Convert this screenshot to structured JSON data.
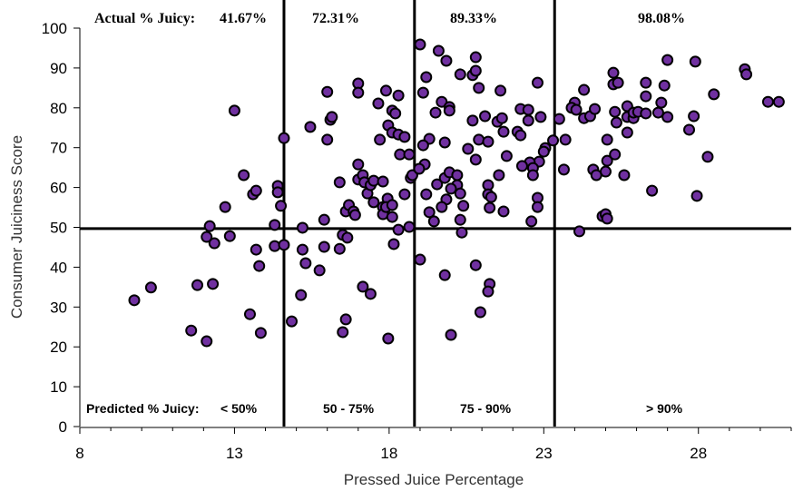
{
  "chart_data": {
    "type": "scatter",
    "title": "",
    "xlabel": "Pressed Juice Percentage",
    "ylabel": "Consumer Juiciness Score",
    "xlim": [
      8,
      31
    ],
    "ylim": [
      0,
      100
    ],
    "x_major_ticks": [
      8,
      13,
      18,
      23,
      28
    ],
    "x_minor_step": 1,
    "y_ticks": [
      0,
      10,
      20,
      30,
      40,
      50,
      60,
      70,
      80,
      90,
      100
    ],
    "grid": false,
    "marker_color": "#7030A0",
    "marker_edge": "#000000",
    "reference_lines": {
      "vertical_x": [
        14.6,
        18.82,
        23.35
      ],
      "horizontal_y": 49.7
    },
    "actual_label": "Actual % Juicy:",
    "actual_values": [
      "41.67%",
      "72.31%",
      "89.33%",
      "98.08%"
    ],
    "predicted_label": "Predicted % Juicy:",
    "predicted_values": [
      "< 50%",
      "50 - 75%",
      "75 - 90%",
      "> 90%"
    ],
    "points": [
      [
        9.76,
        31.7
      ],
      [
        10.3,
        34.9
      ],
      [
        11.6,
        24.1
      ],
      [
        12.1,
        21.4
      ],
      [
        11.8,
        35.5
      ],
      [
        12.3,
        35.8
      ],
      [
        12.1,
        47.6
      ],
      [
        12.2,
        50.3
      ],
      [
        12.35,
        46.0
      ],
      [
        12.7,
        55.1
      ],
      [
        12.85,
        47.8
      ],
      [
        13.0,
        79.3
      ],
      [
        13.3,
        63.1
      ],
      [
        13.5,
        28.2
      ],
      [
        13.6,
        58.3
      ],
      [
        13.7,
        59.2
      ],
      [
        13.7,
        44.4
      ],
      [
        13.8,
        40.3
      ],
      [
        13.85,
        23.5
      ],
      [
        14.3,
        50.6
      ],
      [
        14.3,
        45.3
      ],
      [
        14.4,
        60.4
      ],
      [
        14.4,
        58.8
      ],
      [
        14.5,
        55.4
      ],
      [
        14.6,
        72.4
      ],
      [
        14.6,
        45.6
      ],
      [
        15.15,
        33.0
      ],
      [
        14.85,
        26.4
      ],
      [
        15.2,
        49.9
      ],
      [
        15.2,
        44.4
      ],
      [
        15.3,
        41.0
      ],
      [
        15.45,
        75.2
      ],
      [
        15.75,
        39.2
      ],
      [
        15.9,
        45.1
      ],
      [
        15.9,
        51.9
      ],
      [
        16.0,
        84.0
      ],
      [
        16.0,
        72.0
      ],
      [
        16.1,
        77.0
      ],
      [
        16.15,
        77.7
      ],
      [
        16.4,
        61.3
      ],
      [
        16.4,
        44.6
      ],
      [
        16.5,
        48.1
      ],
      [
        16.65,
        47.4
      ],
      [
        16.5,
        23.7
      ],
      [
        16.6,
        26.9
      ],
      [
        16.6,
        54.0
      ],
      [
        16.7,
        55.6
      ],
      [
        16.85,
        54.0
      ],
      [
        16.9,
        53.1
      ],
      [
        17.0,
        86.1
      ],
      [
        17.0,
        83.8
      ],
      [
        17.0,
        65.8
      ],
      [
        17.0,
        62.0
      ],
      [
        17.15,
        63.1
      ],
      [
        17.2,
        61.3
      ],
      [
        17.3,
        58.5
      ],
      [
        17.4,
        60.6
      ],
      [
        17.5,
        61.7
      ],
      [
        17.5,
        56.3
      ],
      [
        17.15,
        35.1
      ],
      [
        17.4,
        33.3
      ],
      [
        17.65,
        81.1
      ],
      [
        17.7,
        72.0
      ],
      [
        17.8,
        61.5
      ],
      [
        17.8,
        55.1
      ],
      [
        17.8,
        53.3
      ],
      [
        17.9,
        84.3
      ],
      [
        17.95,
        57.2
      ],
      [
        17.9,
        55.1
      ],
      [
        18.1,
        55.6
      ],
      [
        18.1,
        52.6
      ],
      [
        17.97,
        22.1
      ],
      [
        18.15,
        45.8
      ],
      [
        17.97,
        75.6
      ],
      [
        18.1,
        79.3
      ],
      [
        18.2,
        78.6
      ],
      [
        18.1,
        73.8
      ],
      [
        18.3,
        83.1
      ],
      [
        18.3,
        73.3
      ],
      [
        18.5,
        72.7
      ],
      [
        18.35,
        68.3
      ],
      [
        18.65,
        68.3
      ],
      [
        18.5,
        58.3
      ],
      [
        18.3,
        49.4
      ],
      [
        18.65,
        50.1
      ],
      [
        18.7,
        62.4
      ],
      [
        18.75,
        63.1
      ],
      [
        19.0,
        95.9
      ],
      [
        19.2,
        87.7
      ],
      [
        19.1,
        83.8
      ],
      [
        19.3,
        72.2
      ],
      [
        19.1,
        70.6
      ],
      [
        19.15,
        65.8
      ],
      [
        18.97,
        64.7
      ],
      [
        19.2,
        58.3
      ],
      [
        19.3,
        53.8
      ],
      [
        19.45,
        51.5
      ],
      [
        19.0,
        41.9
      ],
      [
        19.6,
        94.3
      ],
      [
        19.85,
        91.8
      ],
      [
        19.5,
        78.8
      ],
      [
        19.7,
        81.5
      ],
      [
        19.95,
        80.2
      ],
      [
        19.95,
        79.3
      ],
      [
        19.8,
        71.3
      ],
      [
        19.55,
        60.8
      ],
      [
        19.8,
        62.4
      ],
      [
        19.95,
        63.8
      ],
      [
        20.2,
        63.1
      ],
      [
        20.2,
        60.6
      ],
      [
        20.0,
        59.7
      ],
      [
        20.3,
        58.5
      ],
      [
        19.85,
        57.0
      ],
      [
        19.7,
        55.1
      ],
      [
        20.4,
        55.4
      ],
      [
        20.3,
        51.9
      ],
      [
        20.35,
        48.7
      ],
      [
        19.8,
        38.0
      ],
      [
        20.0,
        23.0
      ],
      [
        20.3,
        88.4
      ],
      [
        20.7,
        88.2
      ],
      [
        20.8,
        89.3
      ],
      [
        20.8,
        92.7
      ],
      [
        20.9,
        85.0
      ],
      [
        20.7,
        76.8
      ],
      [
        21.1,
        77.9
      ],
      [
        20.9,
        72.0
      ],
      [
        21.2,
        71.5
      ],
      [
        20.55,
        69.7
      ],
      [
        20.8,
        67.0
      ],
      [
        21.2,
        60.6
      ],
      [
        21.2,
        58.3
      ],
      [
        21.3,
        57.6
      ],
      [
        21.25,
        54.9
      ],
      [
        20.8,
        40.5
      ],
      [
        21.25,
        35.8
      ],
      [
        21.2,
        33.9
      ],
      [
        20.95,
        28.7
      ],
      [
        21.6,
        84.3
      ],
      [
        21.5,
        76.5
      ],
      [
        21.65,
        77.4
      ],
      [
        21.7,
        74.0
      ],
      [
        21.8,
        67.9
      ],
      [
        21.55,
        63.1
      ],
      [
        21.7,
        54.0
      ],
      [
        22.25,
        79.7
      ],
      [
        22.5,
        79.5
      ],
      [
        22.5,
        76.8
      ],
      [
        22.9,
        77.7
      ],
      [
        22.8,
        86.3
      ],
      [
        22.15,
        74.0
      ],
      [
        22.25,
        73.1
      ],
      [
        23.3,
        71.8
      ],
      [
        23.05,
        69.9
      ],
      [
        23.0,
        69.0
      ],
      [
        22.85,
        66.5
      ],
      [
        22.55,
        66.3
      ],
      [
        22.3,
        65.4
      ],
      [
        22.65,
        64.9
      ],
      [
        22.65,
        63.1
      ],
      [
        22.8,
        57.4
      ],
      [
        22.8,
        55.1
      ],
      [
        22.6,
        51.5
      ],
      [
        23.5,
        77.2
      ],
      [
        23.7,
        72.0
      ],
      [
        23.65,
        64.5
      ],
      [
        24.3,
        84.5
      ],
      [
        24.0,
        81.3
      ],
      [
        23.9,
        80.0
      ],
      [
        24.05,
        79.5
      ],
      [
        24.3,
        77.4
      ],
      [
        24.5,
        77.9
      ],
      [
        24.65,
        79.7
      ],
      [
        24.15,
        49.0
      ],
      [
        24.6,
        64.5
      ],
      [
        24.7,
        63.1
      ],
      [
        25.0,
        64.0
      ],
      [
        25.05,
        66.7
      ],
      [
        25.3,
        68.3
      ],
      [
        25.05,
        72.0
      ],
      [
        24.9,
        52.8
      ],
      [
        25.0,
        53.3
      ],
      [
        25.05,
        52.2
      ],
      [
        25.25,
        88.8
      ],
      [
        25.25,
        85.9
      ],
      [
        25.4,
        86.3
      ],
      [
        25.3,
        79.0
      ],
      [
        25.35,
        76.3
      ],
      [
        25.7,
        80.4
      ],
      [
        25.7,
        77.7
      ],
      [
        25.9,
        77.4
      ],
      [
        25.9,
        78.8
      ],
      [
        26.05,
        79.0
      ],
      [
        25.7,
        73.8
      ],
      [
        25.6,
        63.1
      ],
      [
        26.3,
        86.3
      ],
      [
        26.3,
        82.9
      ],
      [
        26.3,
        78.6
      ],
      [
        26.7,
        78.8
      ],
      [
        26.8,
        81.3
      ],
      [
        26.9,
        85.6
      ],
      [
        27.0,
        92.0
      ],
      [
        27.0,
        77.7
      ],
      [
        26.5,
        59.2
      ],
      [
        27.7,
        74.5
      ],
      [
        27.85,
        77.9
      ],
      [
        27.9,
        91.6
      ],
      [
        27.95,
        57.9
      ],
      [
        28.3,
        67.7
      ],
      [
        28.5,
        83.4
      ],
      [
        29.5,
        89.7
      ],
      [
        29.55,
        88.4
      ],
      [
        30.25,
        81.5
      ],
      [
        30.6,
        81.5
      ]
    ]
  }
}
